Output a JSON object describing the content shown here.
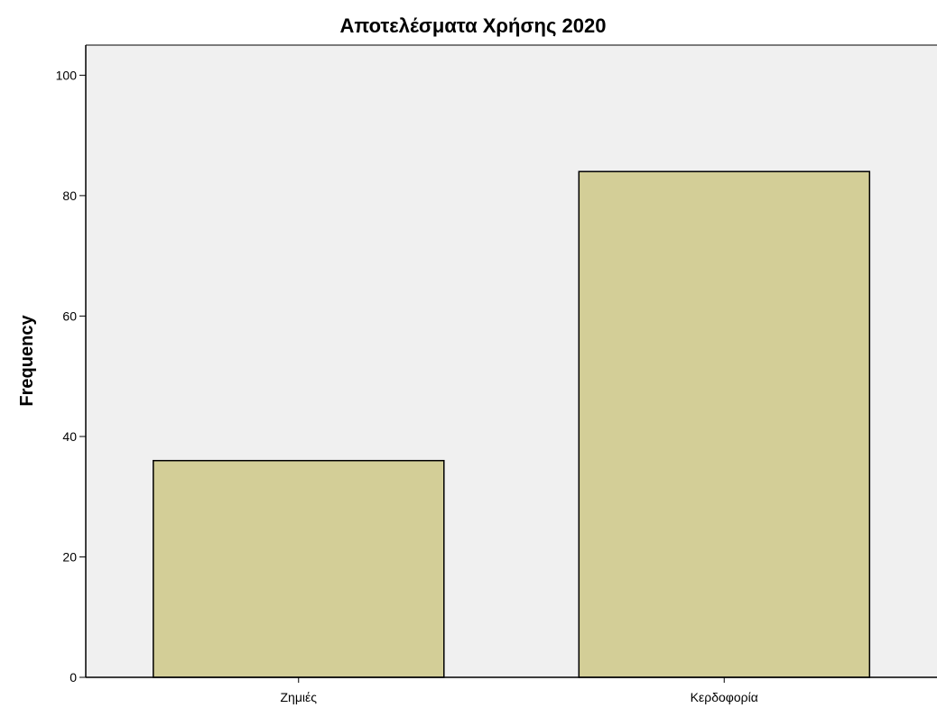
{
  "chart_data": {
    "type": "bar",
    "title": "Αποτελέσματα Χρήσης 2020",
    "xlabel": "",
    "ylabel": "Frequency",
    "categories": [
      "Ζημιές",
      "Κερδοφορία"
    ],
    "values": [
      36,
      84
    ],
    "ylim": [
      0,
      105
    ],
    "yticks": [
      "0",
      "20",
      "40",
      "60",
      "80",
      "100"
    ],
    "grid": false,
    "legend": "none"
  },
  "colors": {
    "bar_fill": "#d3ce97",
    "bar_stroke": "#000000",
    "plot_background": "#f0f0f0",
    "axis": "#000000"
  }
}
